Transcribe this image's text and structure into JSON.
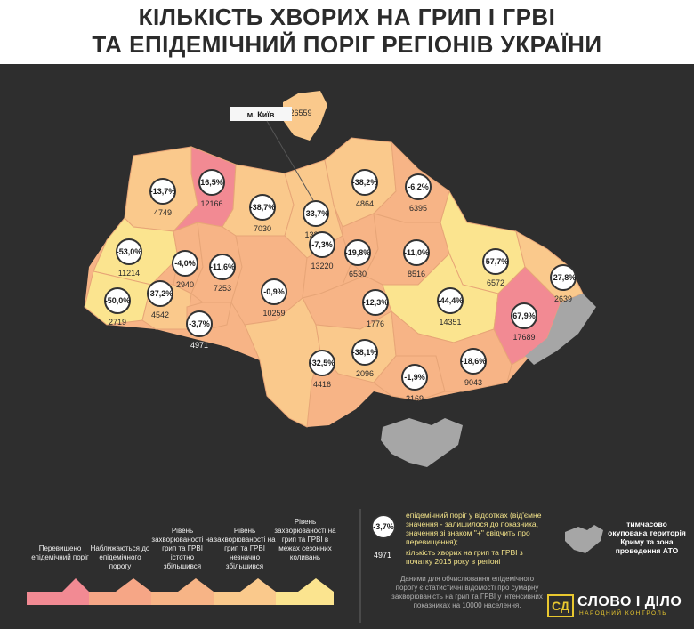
{
  "header": {
    "title_line1": "КІЛЬКІСТЬ ХВОРИХ НА ГРИП І ГРВІ",
    "title_line2": "ТА ЕПІДЕМІЧНИЙ ПОРІГ РЕГІОНІВ УКРАЇНИ"
  },
  "colors": {
    "above": "#f28a93",
    "near": "#f6a686",
    "significant": "#f7b486",
    "slight": "#fac98c",
    "seasonal": "#fbe48f",
    "occupied": "#a6a6a6",
    "background": "#2e2e2e"
  },
  "map": {
    "kyiv_label": "м. Київ",
    "kyiv_city_count": "26559",
    "regions": [
      {
        "id": "volyn",
        "pct": "-13,7%",
        "count": "4749",
        "level": "slight"
      },
      {
        "id": "rivne",
        "pct": "16,5%",
        "count": "12166",
        "level": "above"
      },
      {
        "id": "zhytomyr",
        "pct": "-38,7%",
        "count": "7030",
        "level": "slight"
      },
      {
        "id": "kyiv-oblast",
        "pct": "-33,7%",
        "count": "13220",
        "level": "slight"
      },
      {
        "id": "chernihiv",
        "pct": "-38,2%",
        "count": "4864",
        "level": "slight"
      },
      {
        "id": "sumy",
        "pct": "-6,2%",
        "count": "6395",
        "level": "significant"
      },
      {
        "id": "lviv",
        "pct": "-53,0%",
        "count": "11214",
        "level": "seasonal"
      },
      {
        "id": "ternopil",
        "pct": "-4,0%",
        "count": "2940",
        "level": "significant"
      },
      {
        "id": "khmelnytskyi",
        "pct": "-11,6%",
        "count": "7253",
        "level": "significant"
      },
      {
        "id": "vinnytsia",
        "pct": "-0,9%",
        "count": "10259",
        "level": "significant"
      },
      {
        "id": "cherkasy",
        "pct": "-7,3%",
        "count": "13220",
        "level": "significant"
      },
      {
        "id": "poltava",
        "pct": "-11,0%",
        "count": "8516",
        "level": "significant"
      },
      {
        "id": "kharkiv",
        "pct": "-57,7%",
        "count": "6572",
        "level": "seasonal"
      },
      {
        "id": "luhansk",
        "pct": "-27,8%",
        "count": "2639",
        "level": "slight"
      },
      {
        "id": "zakarpattia",
        "pct": "-50,0%",
        "count": "2719",
        "level": "seasonal"
      },
      {
        "id": "ivano-frankivsk",
        "pct": "-37,2%",
        "count": "4542",
        "level": "slight"
      },
      {
        "id": "chernivtsi",
        "pct": "-3,7%",
        "count": "4971",
        "level": "significant"
      },
      {
        "id": "kirovohrad",
        "pct": "-12,3%",
        "count": "1776",
        "level": "significant"
      },
      {
        "id": "kyiv-small",
        "pct": "-19,8%",
        "count": "6530",
        "level": "significant"
      },
      {
        "id": "dnipro",
        "pct": "-44,4%",
        "count": "14351",
        "level": "seasonal"
      },
      {
        "id": "donetsk",
        "pct": "67,9%",
        "count": "17689",
        "level": "above"
      },
      {
        "id": "mykolaiv",
        "pct": "-38,1%",
        "count": "2096",
        "level": "slight"
      },
      {
        "id": "odesa",
        "pct": "-32,5%",
        "count": "4416",
        "level": "slight"
      },
      {
        "id": "kherson",
        "pct": "-1,9%",
        "count": "2169",
        "level": "significant"
      },
      {
        "id": "zaporizhzhia",
        "pct": "-18,6%",
        "count": "9043",
        "level": "significant"
      }
    ]
  },
  "legend": [
    {
      "label": "Перевищено епідемічний поріг"
    },
    {
      "label": "Наближаються до епідемічного порогу"
    },
    {
      "label": "Рівень захворюваності на грип та ГРВІ істотно збільшився"
    },
    {
      "label": "Рівень захворюваності на грип та ГРВІ незначно збільшився"
    },
    {
      "label": "Рівень захворюваності на грип та ГРВІ в межах сезонних коливань"
    }
  ],
  "explanation": {
    "sample_pct": "-3,7%",
    "pct_text": "епідемічний поріг у відсотках (від'ємне значення - залишилося до показника, значення зі знаком \"+\" свідчить про перевищення);",
    "sample_count": "4971",
    "count_text": "кількість хворих на грип та ГРВІ з початку 2016 року в регіоні",
    "note": "Даними для обчислювання епідемічного порогу є статистичні відомості про сумарну захворюваність на грип та ГРВІ у інтенсивних показниках на 10000 населення."
  },
  "crimea_note": "тимчасово окупована територія Криму та зона проведення АТО",
  "logo": {
    "mark": "СД",
    "name": "СЛОВО І ДІЛО",
    "subtitle": "НАРОДНИЙ КОНТРОЛЬ"
  }
}
